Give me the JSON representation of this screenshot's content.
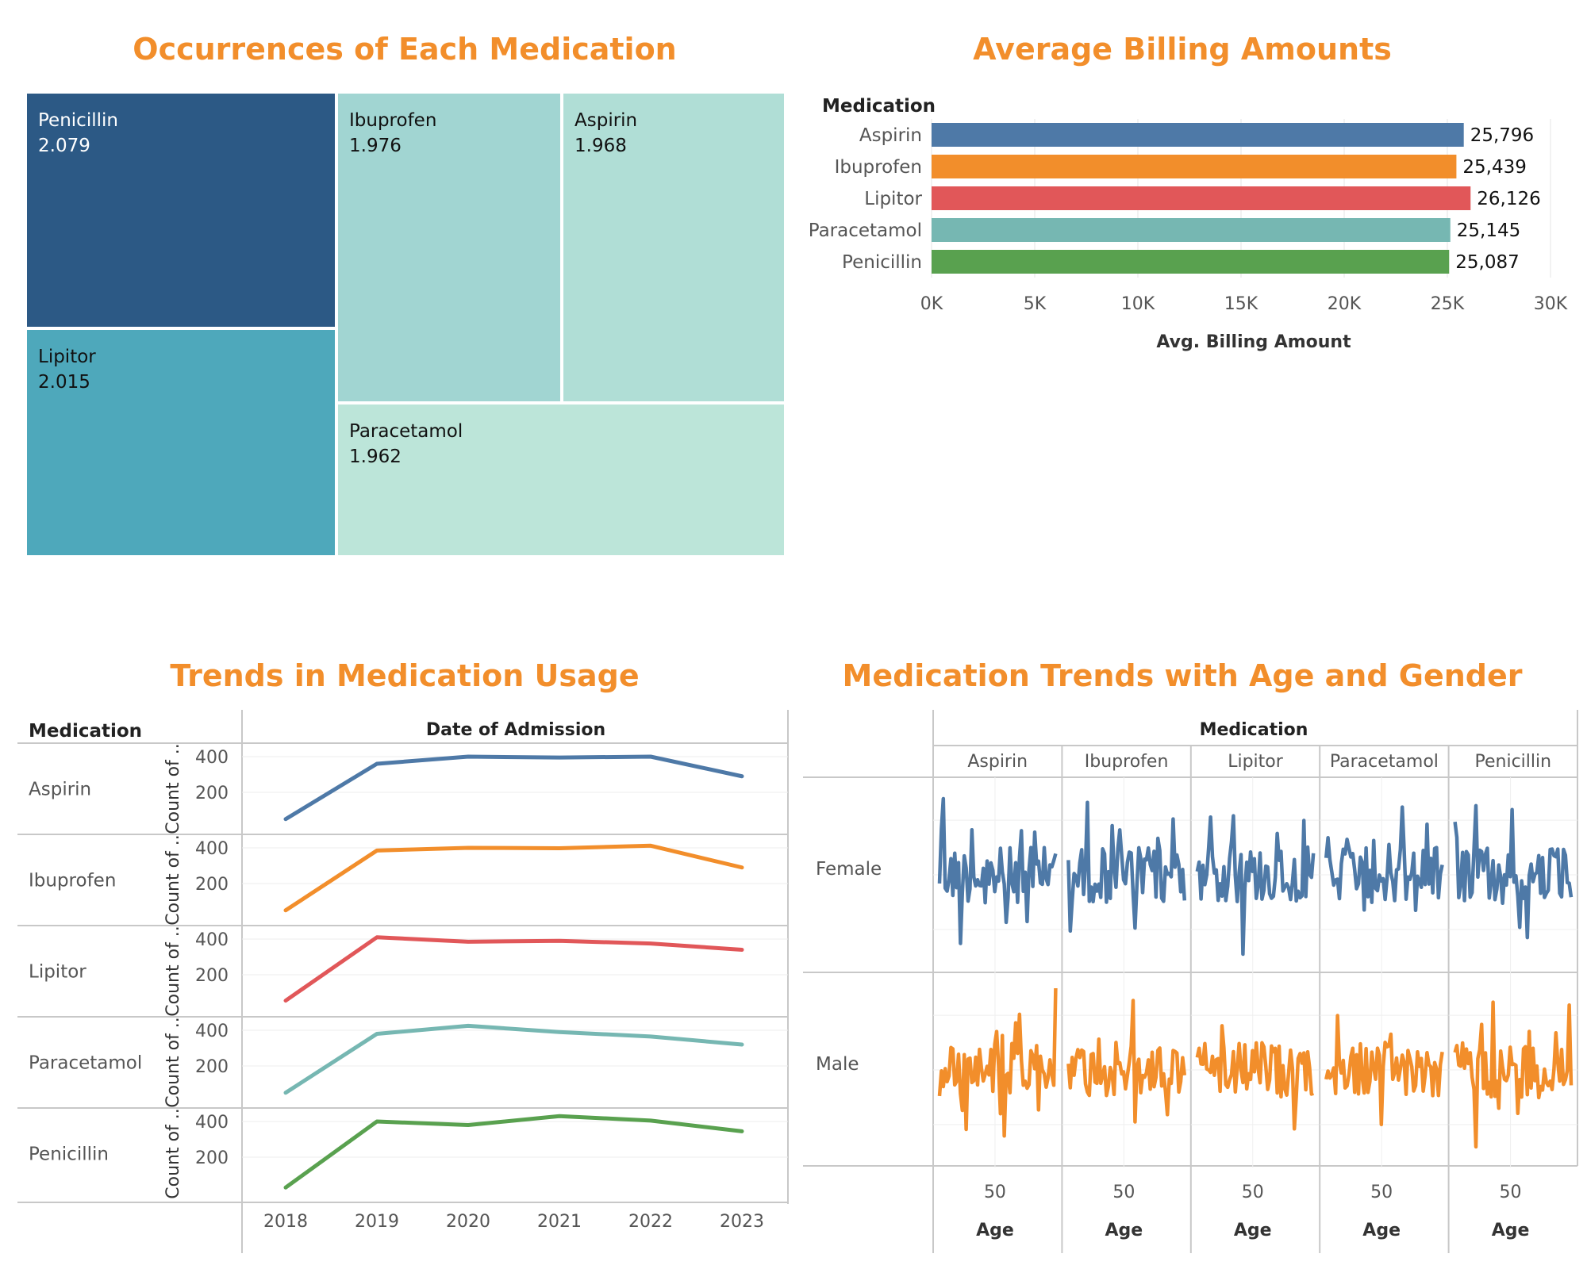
{
  "titles": {
    "treemap": "Occurrences of Each Medication",
    "billing": "Average Billing Amounts",
    "trends": "Trends in Medication Usage",
    "age_gender": "Medication Trends with Age and Gender"
  },
  "colors": {
    "title": "#f28e2b",
    "Aspirin": "#4e79a7",
    "Ibuprofen": "#f28e2b",
    "Lipitor": "#e15759",
    "Paracetamol": "#76b7b2",
    "Penicillin": "#59a14f",
    "female": "#4e79a7",
    "male": "#f28e2b"
  },
  "chart_data": [
    {
      "type": "treemap",
      "title": "Occurrences of Each Medication",
      "items": [
        {
          "name": "Penicillin",
          "value": "2.079",
          "color": "#2c5985"
        },
        {
          "name": "Lipitor",
          "value": "2.015",
          "color": "#4ea8bb"
        },
        {
          "name": "Ibuprofen",
          "value": "1.976",
          "color": "#a1d5d2"
        },
        {
          "name": "Aspirin",
          "value": "1.968",
          "color": "#b0ded6"
        },
        {
          "name": "Paracetamol",
          "value": "1.962",
          "color": "#bce5d9"
        }
      ]
    },
    {
      "type": "bar",
      "orientation": "horizontal",
      "title": "Average Billing Amounts",
      "row_header": "Medication",
      "categories": [
        "Aspirin",
        "Ibuprofen",
        "Lipitor",
        "Paracetamol",
        "Penicillin"
      ],
      "values": [
        25796,
        25439,
        26126,
        25145,
        25087
      ],
      "value_labels": [
        "25,796",
        "25,439",
        "26,126",
        "25,145",
        "25,087"
      ],
      "xlabel": "Avg. Billing Amount",
      "xlim": [
        0,
        30000
      ],
      "x_ticks": [
        0,
        5000,
        10000,
        15000,
        20000,
        25000,
        30000
      ],
      "x_tick_labels": [
        "0K",
        "5K",
        "10K",
        "15K",
        "20K",
        "25K",
        "30K"
      ]
    },
    {
      "type": "line",
      "title": "Trends in Medication Usage",
      "row_header": "Medication",
      "column_header": "Date of Admission",
      "ylabel": "Count of ..",
      "y_ticks": [
        200,
        400
      ],
      "ylim": [
        0,
        440
      ],
      "x": [
        "2018",
        "2019",
        "2020",
        "2021",
        "2022",
        "2023"
      ],
      "series": [
        {
          "name": "Aspirin",
          "values": [
            50,
            360,
            400,
            395,
            400,
            290
          ]
        },
        {
          "name": "Ibuprofen",
          "values": [
            50,
            385,
            400,
            398,
            412,
            290
          ]
        },
        {
          "name": "Lipitor",
          "values": [
            55,
            410,
            385,
            390,
            375,
            340
          ]
        },
        {
          "name": "Paracetamol",
          "values": [
            50,
            380,
            425,
            390,
            365,
            320
          ]
        },
        {
          "name": "Penicillin",
          "values": [
            30,
            400,
            380,
            430,
            405,
            345
          ]
        }
      ]
    },
    {
      "type": "line",
      "title": "Medication Trends with Age and Gender",
      "column_header": "Medication",
      "columns": [
        "Aspirin",
        "Ibuprofen",
        "Lipitor",
        "Paracetamol",
        "Penicillin"
      ],
      "rows": [
        "Female",
        "Male"
      ],
      "x_tick_label": "50",
      "xlabel": "Age"
    }
  ]
}
